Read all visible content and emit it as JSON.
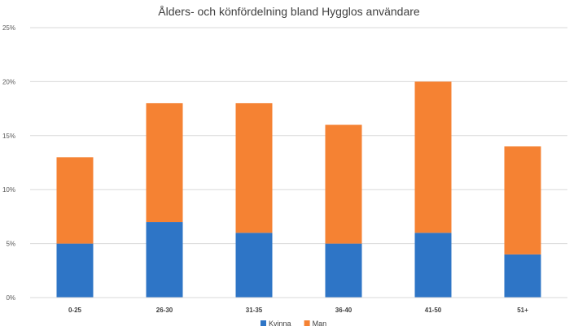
{
  "chart_data": {
    "type": "bar",
    "stacked": true,
    "title": "Ålders- och könfördelning bland Hygglos användare",
    "xlabel": "",
    "ylabel": "",
    "categories": [
      "0-25",
      "26-30",
      "31-35",
      "36-40",
      "41-50",
      "51+"
    ],
    "series": [
      {
        "name": "Kvinna",
        "color": "#2E75C6",
        "values": [
          5,
          7,
          6,
          5,
          6,
          4
        ]
      },
      {
        "name": "Man",
        "color": "#F58233",
        "values": [
          8,
          11,
          12,
          11,
          14,
          10
        ]
      }
    ],
    "ylim": [
      0,
      25
    ],
    "yticks": [
      0,
      5,
      10,
      15,
      20,
      25
    ],
    "ytick_labels": [
      "0%",
      "5%",
      "10%",
      "15%",
      "20%",
      "25%"
    ],
    "grid": true,
    "gridline_color": "#D9D9D9",
    "legend_position": "bottom"
  }
}
